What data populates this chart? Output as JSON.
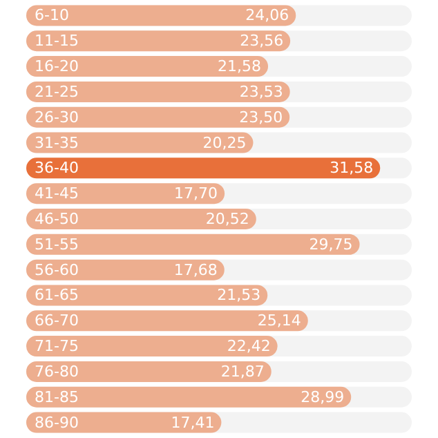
{
  "chart_data": {
    "type": "bar",
    "orientation": "horizontal",
    "categories": [
      "6-10",
      "11-15",
      "16-20",
      "21-25",
      "26-30",
      "31-35",
      "36-40",
      "41-45",
      "46-50",
      "51-55",
      "56-60",
      "61-65",
      "66-70",
      "71-75",
      "76-80",
      "81-85",
      "86-90"
    ],
    "values": [
      24.06,
      23.56,
      21.58,
      23.53,
      23.5,
      20.25,
      31.58,
      17.7,
      20.52,
      29.75,
      17.68,
      21.53,
      25.14,
      22.42,
      21.87,
      28.99,
      17.41
    ],
    "value_labels": [
      "24,06",
      "23,56",
      "21,58",
      "23,53",
      "23,50",
      "20,25",
      "31,58",
      "17,70",
      "20,52",
      "29,75",
      "17,68",
      "21,53",
      "25,14",
      "22,42",
      "21,87",
      "28,99",
      "17,41"
    ],
    "colors": [
      "#edae8f",
      "#edae8f",
      "#edae8f",
      "#edae8f",
      "#edae8f",
      "#edae8f",
      "#e8703a",
      "#edae8f",
      "#edae8f",
      "#edae8f",
      "#edae8f",
      "#edae8f",
      "#edae8f",
      "#edae8f",
      "#edae8f",
      "#edae8f",
      "#edae8f"
    ],
    "xlim": [
      0,
      34.4
    ],
    "tick_labels": "y"
  }
}
